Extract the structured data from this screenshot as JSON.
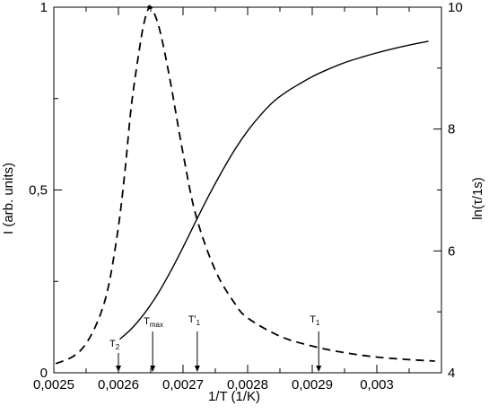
{
  "chart_data": {
    "type": "line",
    "title": "",
    "xlabel": "1/T (1/K)",
    "ylabel_left": "I (arb. units)",
    "ylabel_right": "ln(τ/1s)",
    "xlim": [
      0.0025,
      0.0031
    ],
    "ylim_left": [
      0,
      1.0
    ],
    "ylim_right": [
      4,
      10
    ],
    "x_ticks": [
      {
        "value": 0.0025,
        "label": "0,0025"
      },
      {
        "value": 0.0026,
        "label": "0,0026"
      },
      {
        "value": 0.0027,
        "label": "0,0027"
      },
      {
        "value": 0.0028,
        "label": "0,0028"
      },
      {
        "value": 0.0029,
        "label": "0,0029"
      },
      {
        "value": 0.003,
        "label": "0,003"
      }
    ],
    "y_left_ticks": [
      {
        "value": 0,
        "label": "0"
      },
      {
        "value": 0.5,
        "label": "0,5"
      },
      {
        "value": 1,
        "label": "1"
      }
    ],
    "y_right_ticks": [
      {
        "value": 4,
        "label": "4"
      },
      {
        "value": 6,
        "label": "6"
      },
      {
        "value": 8,
        "label": "8"
      },
      {
        "value": 10,
        "label": "10"
      }
    ],
    "grid": false,
    "series": [
      {
        "style": "dashed",
        "axis": "left",
        "x": [
          0.002503,
          0.00253,
          0.00255,
          0.00257,
          0.002585,
          0.0026,
          0.00261,
          0.00262,
          0.002632,
          0.00264,
          0.002648,
          0.002655,
          0.002665,
          0.00268,
          0.0027,
          0.00272,
          0.00275,
          0.00278,
          0.0028,
          0.00285,
          0.0029,
          0.00295,
          0.003,
          0.00305,
          0.00309
        ],
        "y": [
          0.025,
          0.045,
          0.08,
          0.15,
          0.24,
          0.4,
          0.55,
          0.73,
          0.88,
          0.96,
          1.0,
          0.985,
          0.93,
          0.8,
          0.6,
          0.43,
          0.28,
          0.19,
          0.15,
          0.1,
          0.073,
          0.055,
          0.043,
          0.036,
          0.032
        ]
      },
      {
        "style": "solid",
        "axis": "right",
        "x": [
          0.002602,
          0.00262,
          0.00264,
          0.00266,
          0.00268,
          0.0027,
          0.00272,
          0.00274,
          0.00276,
          0.00278,
          0.0028,
          0.00282,
          0.00284,
          0.00286,
          0.00288,
          0.0029,
          0.00292,
          0.00295,
          0.00298,
          0.003,
          0.00303,
          0.00306,
          0.00308
        ],
        "y": [
          4.55,
          4.72,
          4.97,
          5.28,
          5.65,
          6.06,
          6.49,
          6.91,
          7.3,
          7.66,
          7.97,
          8.23,
          8.45,
          8.61,
          8.74,
          8.86,
          8.96,
          9.09,
          9.19,
          9.25,
          9.33,
          9.4,
          9.44
        ]
      }
    ],
    "annotations": [
      {
        "text": "T",
        "sub": "2",
        "x": 0.0026
      },
      {
        "text": "T",
        "sub": "max",
        "x": 0.002653
      },
      {
        "text": "T'",
        "sub": "1",
        "x": 0.002722
      },
      {
        "text": "T",
        "sub": "1",
        "x": 0.00291
      }
    ]
  }
}
